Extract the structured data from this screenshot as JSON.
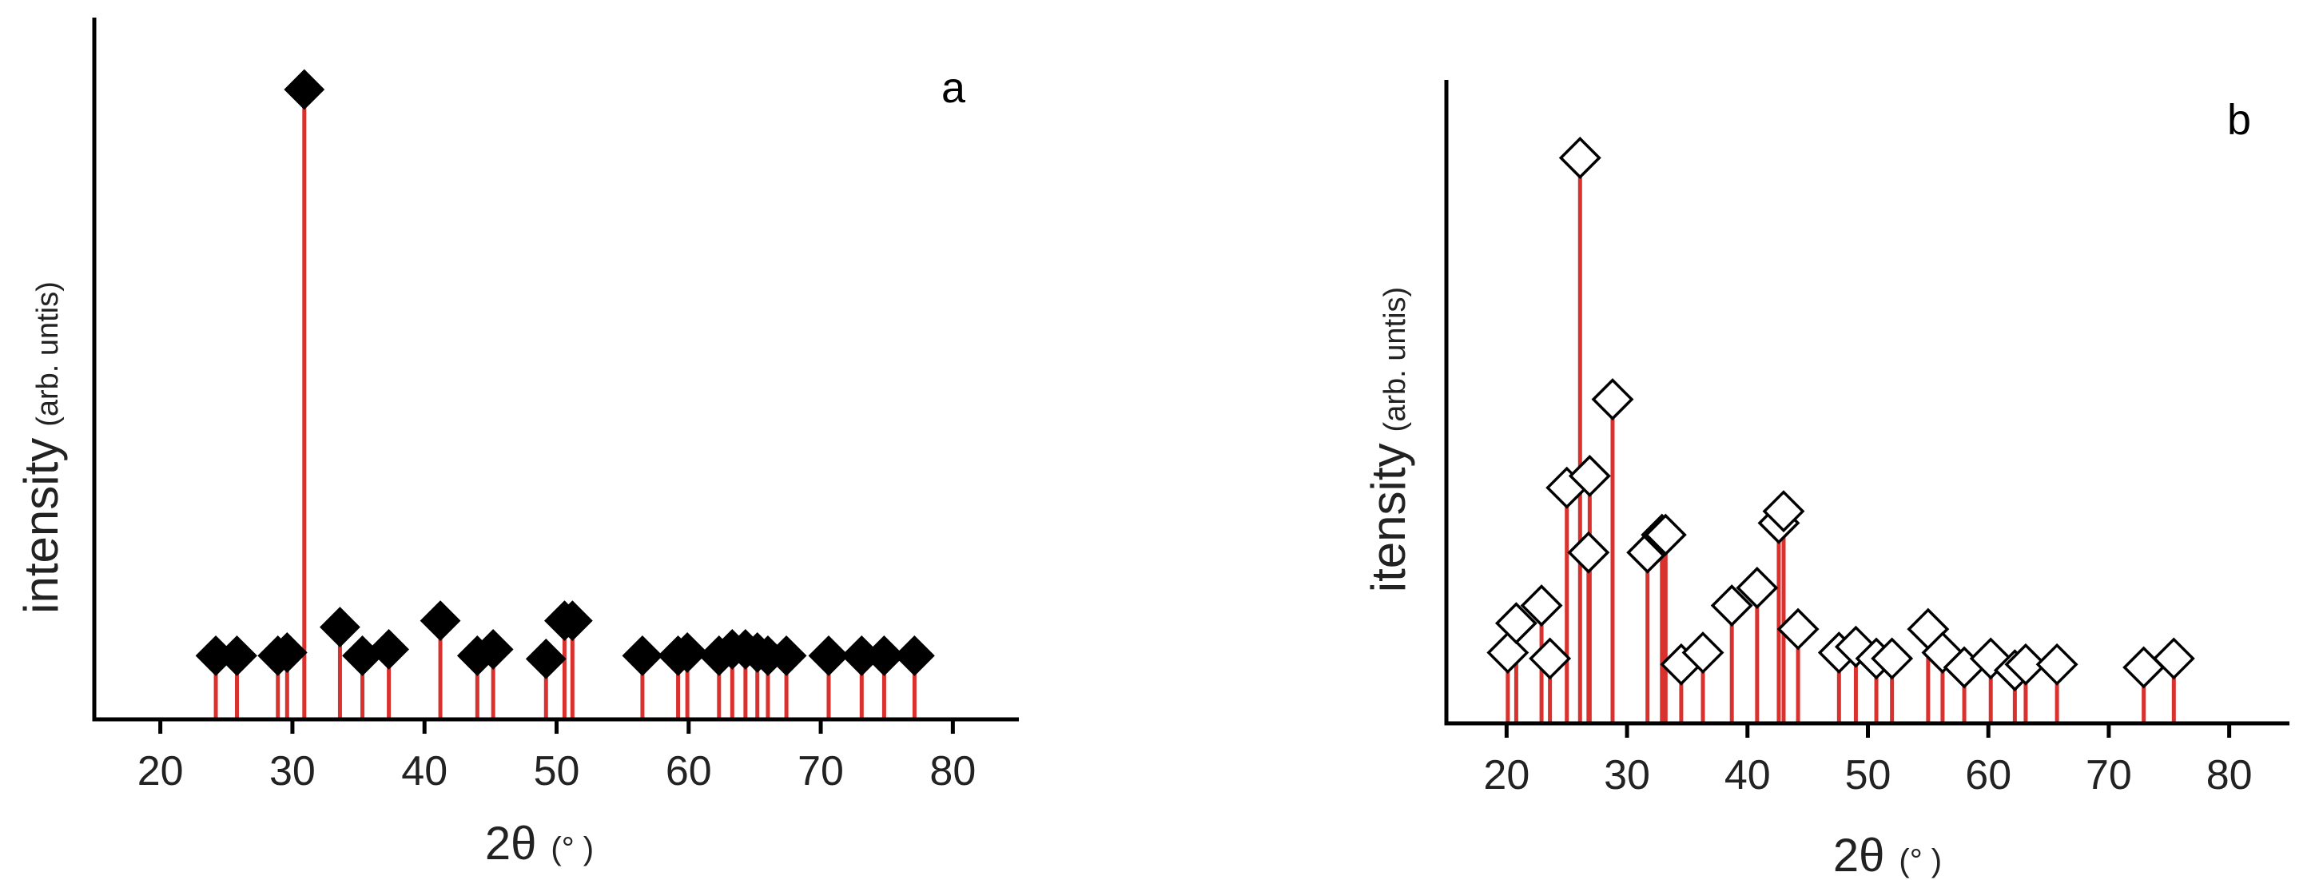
{
  "chart_data": [
    {
      "type": "stem",
      "panel_label": "a",
      "ylabel": {
        "main": "intensity",
        "sub": "(arb. untis)"
      },
      "xlabel": {
        "main": "2θ",
        "sub": "(° )"
      },
      "xlim": [
        15,
        85
      ],
      "ylim": [
        0,
        100
      ],
      "xticks": [
        20,
        30,
        40,
        50,
        60,
        70,
        80
      ],
      "yticks_visible": false,
      "marker": "filled-diamond",
      "stem_color": "#d9322e",
      "marker_color": "#000000",
      "points": [
        {
          "x": 24.2,
          "y": 10
        },
        {
          "x": 25.8,
          "y": 10
        },
        {
          "x": 28.9,
          "y": 10
        },
        {
          "x": 29.6,
          "y": 10.5
        },
        {
          "x": 30.9,
          "y": 99
        },
        {
          "x": 33.6,
          "y": 14.5
        },
        {
          "x": 35.3,
          "y": 10
        },
        {
          "x": 37.3,
          "y": 11
        },
        {
          "x": 41.2,
          "y": 15.5
        },
        {
          "x": 44.0,
          "y": 10
        },
        {
          "x": 45.2,
          "y": 11
        },
        {
          "x": 49.2,
          "y": 9.5
        },
        {
          "x": 50.6,
          "y": 15.5
        },
        {
          "x": 51.2,
          "y": 15.5
        },
        {
          "x": 56.5,
          "y": 10
        },
        {
          "x": 59.2,
          "y": 10
        },
        {
          "x": 59.9,
          "y": 10.5
        },
        {
          "x": 62.3,
          "y": 10
        },
        {
          "x": 63.3,
          "y": 11
        },
        {
          "x": 64.3,
          "y": 11
        },
        {
          "x": 65.2,
          "y": 10.5
        },
        {
          "x": 66.0,
          "y": 10
        },
        {
          "x": 67.4,
          "y": 10
        },
        {
          "x": 70.6,
          "y": 10
        },
        {
          "x": 73.1,
          "y": 10
        },
        {
          "x": 74.8,
          "y": 10
        },
        {
          "x": 77.1,
          "y": 10
        }
      ]
    },
    {
      "type": "stem",
      "panel_label": "b",
      "ylabel": {
        "main": "itensity",
        "sub": "(arb. untis)"
      },
      "xlabel": {
        "main": "2θ",
        "sub": "(° )"
      },
      "xlim": [
        15,
        85
      ],
      "ylim": [
        0,
        100
      ],
      "xticks": [
        20,
        30,
        40,
        50,
        60,
        70,
        80
      ],
      "yticks_visible": false,
      "marker": "open-diamond",
      "stem_color": "#d9322e",
      "marker_color": "#000000",
      "points": [
        {
          "x": 20.1,
          "y": 12
        },
        {
          "x": 20.8,
          "y": 17
        },
        {
          "x": 22.9,
          "y": 20
        },
        {
          "x": 23.6,
          "y": 11
        },
        {
          "x": 25.0,
          "y": 40
        },
        {
          "x": 26.1,
          "y": 96
        },
        {
          "x": 26.9,
          "y": 42
        },
        {
          "x": 26.8,
          "y": 29
        },
        {
          "x": 28.8,
          "y": 55
        },
        {
          "x": 31.7,
          "y": 29
        },
        {
          "x": 32.9,
          "y": 32
        },
        {
          "x": 33.2,
          "y": 32
        },
        {
          "x": 34.5,
          "y": 10
        },
        {
          "x": 36.3,
          "y": 12
        },
        {
          "x": 38.7,
          "y": 20
        },
        {
          "x": 40.8,
          "y": 23
        },
        {
          "x": 42.6,
          "y": 34
        },
        {
          "x": 43.0,
          "y": 36
        },
        {
          "x": 44.2,
          "y": 16
        },
        {
          "x": 47.6,
          "y": 12
        },
        {
          "x": 49.0,
          "y": 13
        },
        {
          "x": 50.7,
          "y": 11
        },
        {
          "x": 52.0,
          "y": 11
        },
        {
          "x": 55.0,
          "y": 16
        },
        {
          "x": 56.2,
          "y": 12
        },
        {
          "x": 58.0,
          "y": 9.5
        },
        {
          "x": 60.2,
          "y": 11
        },
        {
          "x": 62.2,
          "y": 9
        },
        {
          "x": 63.1,
          "y": 10
        },
        {
          "x": 65.7,
          "y": 10
        },
        {
          "x": 72.9,
          "y": 9.5
        },
        {
          "x": 75.4,
          "y": 11
        }
      ]
    }
  ]
}
